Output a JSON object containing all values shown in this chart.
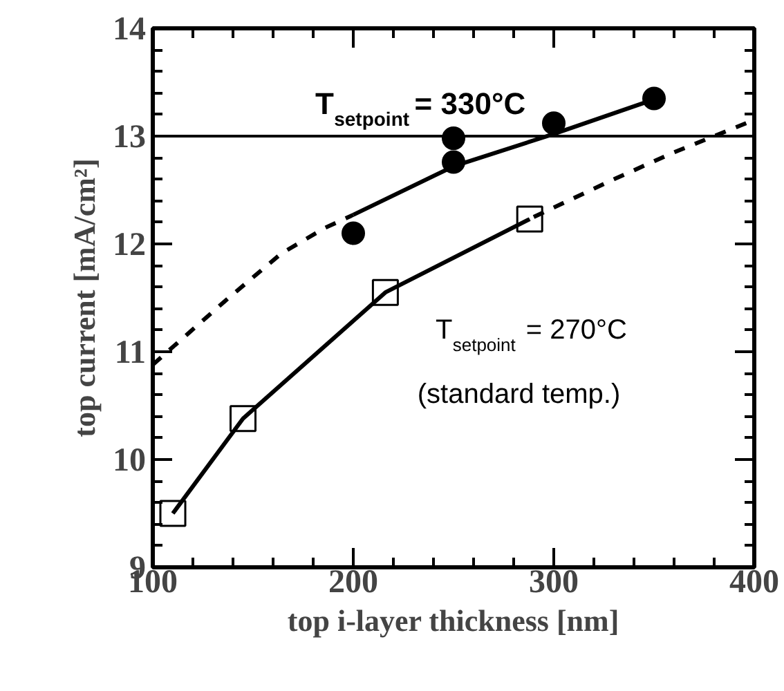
{
  "chart_data": {
    "type": "scatter",
    "xlabel": "top i-layer thickness [nm]",
    "ylabel": "top current [mA/cm²]",
    "xlim": [
      100,
      400
    ],
    "ylim": [
      9,
      14
    ],
    "xticks": [
      100,
      200,
      300,
      400
    ],
    "yticks": [
      9,
      10,
      11,
      12,
      13,
      14
    ],
    "grid": false,
    "series": [
      {
        "marker": "circle",
        "color": "#000000",
        "x": [
          200,
          250,
          250,
          300,
          350
        ],
        "values": [
          12.1,
          12.98,
          12.76,
          13.12,
          13.35
        ]
      },
      {
        "marker": "square",
        "color": "#000000",
        "x": [
          110,
          145,
          216,
          288
        ],
        "values": [
          9.5,
          10.38,
          11.55,
          12.23
        ]
      },
      {
        "type": "line",
        "line_style": "solid",
        "color": "#000000",
        "x": [
          200,
          250,
          300,
          350
        ],
        "values": [
          12.27,
          12.72,
          13.02,
          13.34
        ]
      },
      {
        "type": "line",
        "line_style": "dashed",
        "color": "#000000",
        "x": [
          100,
          136,
          164,
          186,
          200
        ],
        "values": [
          10.88,
          11.47,
          11.91,
          12.15,
          12.27
        ]
      },
      {
        "type": "line",
        "line_style": "solid",
        "color": "#000000",
        "x": [
          110,
          145,
          216,
          288
        ],
        "values": [
          9.5,
          10.38,
          11.55,
          12.23
        ]
      },
      {
        "type": "line",
        "line_style": "dashed",
        "color": "#000000",
        "x": [
          290,
          330,
          360,
          400
        ],
        "values": [
          12.25,
          12.6,
          12.85,
          13.15
        ]
      }
    ],
    "ref_lines": [
      {
        "axis": "y",
        "value": 13,
        "color": "#000000",
        "line_style": "solid"
      }
    ],
    "annotations": [
      "T$_{setpoint}$= 330°C",
      "T$_{setpoint}$= 270°C",
      "(standard temp.)"
    ]
  }
}
